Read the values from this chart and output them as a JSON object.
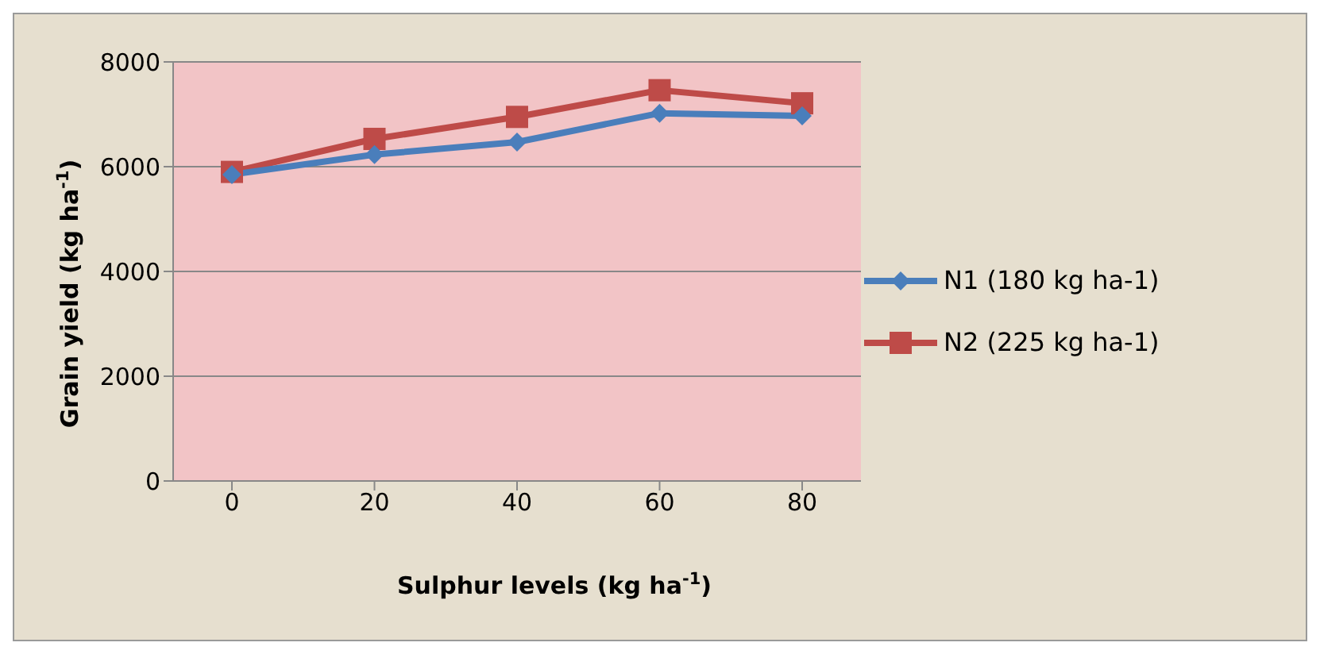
{
  "chart_data": {
    "type": "line",
    "xlabel": "Sulphur levels (kg ha$^{-1}$)",
    "ylabel": "Grain yield (kg ha$^{-1}$)",
    "categories": [
      "0",
      "20",
      "40",
      "60",
      "80"
    ],
    "series": [
      {
        "name": "N1 (180 kg ha-1)",
        "color": "#4a7ebb",
        "marker": "diamond",
        "values": [
          5850,
          6230,
          6470,
          7020,
          6970
        ]
      },
      {
        "name": "N2 (225 kg ha-1)",
        "color": "#be4b48",
        "marker": "square",
        "values": [
          5900,
          6530,
          6950,
          7460,
          7210
        ]
      }
    ],
    "ylim": [
      0,
      8000
    ],
    "yticks": [
      0,
      2000,
      4000,
      6000,
      8000
    ],
    "grid": "y",
    "legend": "right"
  }
}
